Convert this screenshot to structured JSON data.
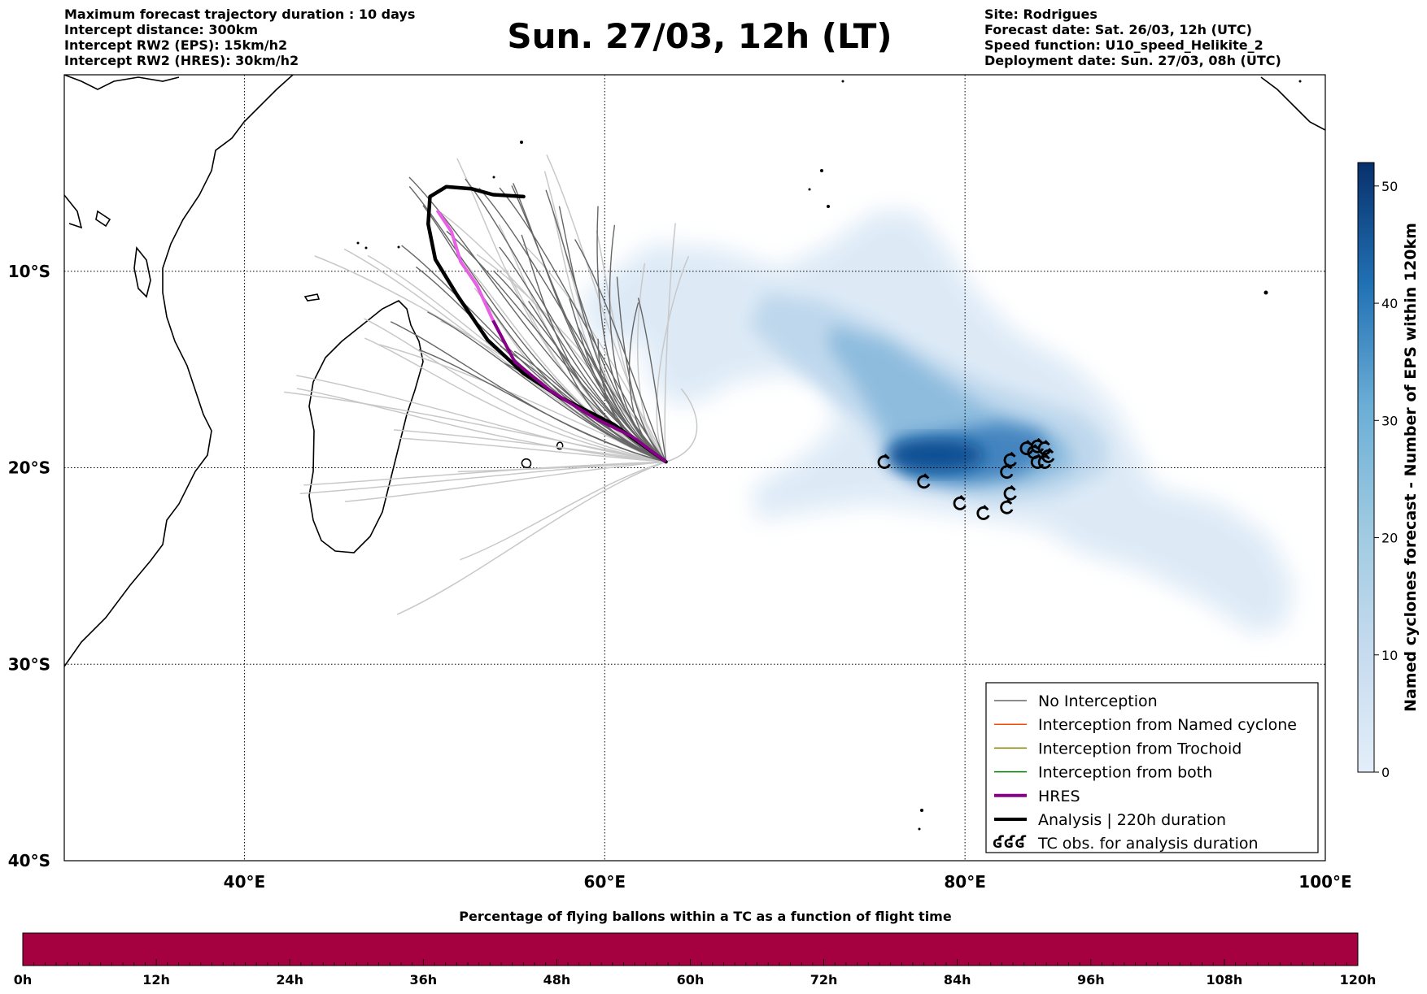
{
  "header": {
    "left": [
      "Maximum forecast trajectory duration : 10 days",
      "Intercept distance: 300km",
      "Intercept RW2 (EPS):  15km/h2",
      "Intercept RW2 (HRES): 30km/h2"
    ],
    "title": "Sun. 27/03, 12h (LT)",
    "right": [
      "Site: Rodrigues",
      "Forecast date: Sat. 26/03, 12h (UTC)",
      "Speed function: U10_speed_Helikite_2",
      "Deployment date: Sun. 27/03, 08h (UTC)"
    ]
  },
  "map": {
    "lon_range": [
      30,
      100
    ],
    "lat_range": [
      -40,
      0
    ],
    "lon_ticks": [
      {
        "value": 40,
        "label": "40°E"
      },
      {
        "value": 60,
        "label": "60°E"
      },
      {
        "value": 80,
        "label": "80°E"
      },
      {
        "value": 100,
        "label": "100°E"
      }
    ],
    "lat_ticks": [
      {
        "value": -10,
        "label": "10°S"
      },
      {
        "value": -20,
        "label": "20°S"
      },
      {
        "value": -30,
        "label": "30°S"
      },
      {
        "value": -40,
        "label": "40°S"
      }
    ],
    "deployment_site": {
      "lon": 63.4,
      "lat": -19.7
    },
    "analysis_track": [
      [
        63.4,
        -19.7
      ],
      [
        60.5,
        -17.8
      ],
      [
        57.5,
        -16.4
      ],
      [
        55.5,
        -15.2
      ],
      [
        53.5,
        -13.5
      ],
      [
        51.8,
        -11.2
      ],
      [
        50.6,
        -9.4
      ],
      [
        50.2,
        -7.6
      ],
      [
        50.3,
        -6.2
      ],
      [
        51.2,
        -5.7
      ],
      [
        52.6,
        -5.8
      ],
      [
        53.8,
        -6.1
      ],
      [
        55.5,
        -6.2
      ]
    ],
    "hres_track": [
      [
        63.4,
        -19.7
      ],
      [
        61.5,
        -18.4
      ],
      [
        59.5,
        -17.5
      ],
      [
        57.0,
        -16.1
      ],
      [
        55.0,
        -14.6
      ],
      [
        53.8,
        -12.5
      ],
      [
        52.9,
        -10.7
      ],
      [
        52.0,
        -9.5
      ],
      [
        51.5,
        -8.0
      ],
      [
        50.7,
        -6.9
      ]
    ],
    "hres_tail_color": "#e860e8",
    "tc_obs": [
      [
        75.5,
        -19.7
      ],
      [
        77.7,
        -20.7
      ],
      [
        79.7,
        -21.8
      ],
      [
        81.0,
        -22.3
      ],
      [
        82.3,
        -20.2
      ],
      [
        82.5,
        -19.6
      ],
      [
        82.3,
        -22.0
      ],
      [
        82.5,
        -21.3
      ],
      [
        83.4,
        -19.0
      ],
      [
        83.8,
        -19.2
      ],
      [
        84.0,
        -18.9
      ],
      [
        84.4,
        -19.0
      ],
      [
        84.6,
        -19.4
      ],
      [
        84.0,
        -19.7
      ],
      [
        84.4,
        -19.7
      ]
    ],
    "colors": {
      "hres": "#880088",
      "analysis": "#000000",
      "no_interception": "#666666",
      "background_tracks": "#c8c8c8",
      "named": "#ff4500",
      "trochoid": "#808000",
      "both": "#008000"
    }
  },
  "legend": {
    "items": [
      {
        "label": "No Interception",
        "color": "#666666",
        "width": 1.5,
        "kind": "line"
      },
      {
        "label": "Interception from Named cyclone",
        "color": "#ff4500",
        "width": 1.5,
        "kind": "line"
      },
      {
        "label": "Interception from Trochoid",
        "color": "#808000",
        "width": 1.5,
        "kind": "line"
      },
      {
        "label": "Interception from both",
        "color": "#008000",
        "width": 1.5,
        "kind": "line"
      },
      {
        "label": "HRES",
        "color": "#880088",
        "width": 4,
        "kind": "line"
      },
      {
        "label": "Analysis | 220h duration",
        "color": "#000000",
        "width": 4,
        "kind": "line"
      },
      {
        "label": "TC obs. for analysis duration",
        "color": "#000000",
        "kind": "symbol",
        "symbol": "ʛʛʛ"
      }
    ]
  },
  "colorbar": {
    "label": "Named cyclones forecast - Number of EPS within 120km",
    "range": [
      0,
      52
    ],
    "ticks": [
      0,
      10,
      20,
      30,
      40,
      50
    ],
    "colors": [
      "#e3eef9",
      "#08306b"
    ]
  },
  "time_bar": {
    "title": "Percentage of flying ballons within a TC as a function of flight time",
    "color": "#a50040",
    "ticks": [
      "0h",
      "12h",
      "24h",
      "36h",
      "48h",
      "60h",
      "72h",
      "84h",
      "96h",
      "108h",
      "120h"
    ]
  }
}
